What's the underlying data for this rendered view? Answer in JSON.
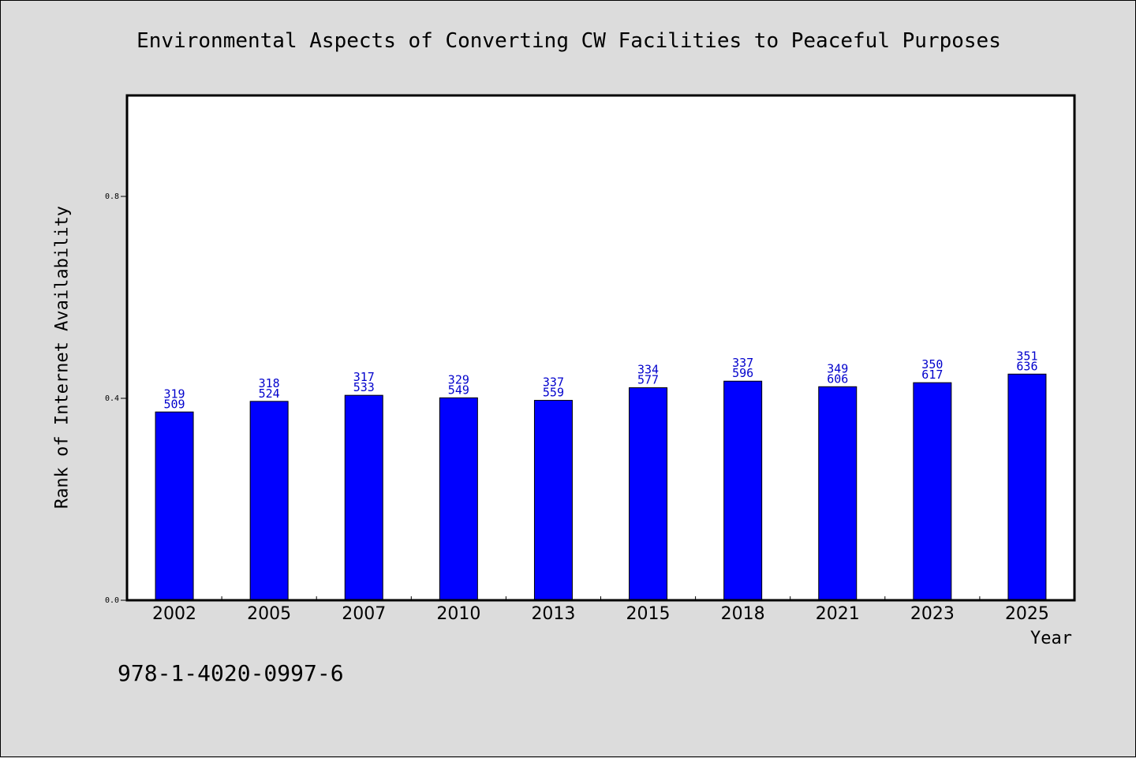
{
  "chart_data": {
    "type": "bar",
    "title": "Environmental Aspects of Converting CW Facilities to Peaceful Purposes",
    "xlabel": "Year",
    "ylabel": "Rank of Internet Availability",
    "categories": [
      "2002",
      "2005",
      "2007",
      "2010",
      "2013",
      "2015",
      "2018",
      "2021",
      "2023",
      "2025"
    ],
    "values": [
      0.373,
      0.394,
      0.406,
      0.401,
      0.396,
      0.421,
      0.434,
      0.423,
      0.431,
      0.448
    ],
    "bar_labels_top": [
      "319",
      "318",
      "317",
      "329",
      "337",
      "334",
      "337",
      "349",
      "350",
      "351"
    ],
    "bar_labels_bottom": [
      "509",
      "524",
      "533",
      "549",
      "559",
      "577",
      "596",
      "606",
      "617",
      "636"
    ],
    "yticks": [
      0.0,
      0.4,
      0.8
    ],
    "ytick_labels": [
      "0.0",
      "0.4",
      "0.8"
    ],
    "ylim": [
      0,
      1.0
    ],
    "grid": false,
    "colors": {
      "bar": "#0000ff",
      "label": "#0000cc",
      "background": "#dcdcdc",
      "plot": "#ffffff"
    }
  },
  "footer_text": "978-1-4020-0997-6"
}
